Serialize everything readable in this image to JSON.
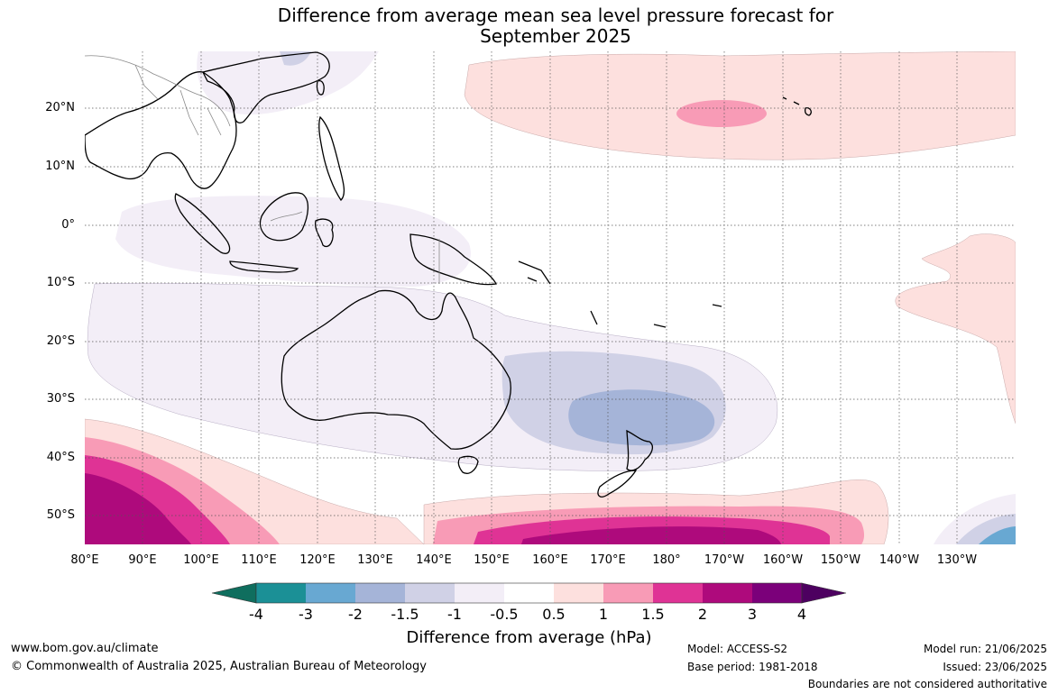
{
  "title_line1": "Difference from average mean sea level pressure forecast for",
  "title_line2": "September 2025",
  "lat_labels": [
    "20°N",
    "10°N",
    "0°",
    "10°S",
    "20°S",
    "30°S",
    "40°S",
    "50°S"
  ],
  "lon_labels": [
    "80°E",
    "90°E",
    "100°E",
    "110°E",
    "120°E",
    "130°E",
    "140°E",
    "150°E",
    "160°E",
    "170°E",
    "180°",
    "170°W",
    "160°W",
    "150°W",
    "140°W",
    "130°W"
  ],
  "colorbar": {
    "ticks": [
      "-4",
      "-3",
      "-2",
      "-1.5",
      "-1",
      "-0.5",
      "0.5",
      "1",
      "1.5",
      "2",
      "3",
      "4"
    ],
    "colors": [
      "#0f6e5e",
      "#1b9096",
      "#68a8d2",
      "#a5b4d8",
      "#d0d1e6",
      "#f3eef7",
      "#ffffff",
      "#fde0de",
      "#f89bb6",
      "#df3395",
      "#ae0a7c",
      "#7b007a",
      "#4d0060"
    ],
    "label": "Difference from average (hPa)"
  },
  "footer": {
    "website": "www.bom.gov.au/climate",
    "copyright": "© Commonwealth of Australia 2025, Australian Bureau of Meteorology",
    "model": "Model: ACCESS-S2",
    "base_period": "Base period: 1981-2018",
    "model_run": "Model run: 21/06/2025",
    "issued": "Issued: 23/06/2025",
    "disclaimer": "Boundaries are not considered authoritative"
  }
}
